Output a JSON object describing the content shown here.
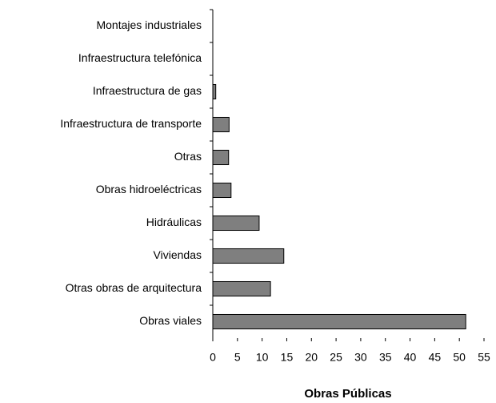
{
  "chart_data": {
    "type": "barh",
    "xlabel": "Obras Públicas",
    "categories": [
      "Montajes industriales",
      "Infraestructura telefónica",
      "Infraestructura de gas",
      "Infraestructura de transporte",
      "Otras",
      "Obras hidroeléctricas",
      "Hidráulicas",
      "Viviendas",
      "Otras obras de arquitectura",
      "Obras viales"
    ],
    "values": [
      0,
      0,
      0.6,
      3.3,
      3.2,
      3.7,
      9.4,
      14.4,
      11.7,
      51.3
    ],
    "color": "#7f7f7f",
    "xlim": [
      0,
      55
    ],
    "xticks": [
      0,
      5,
      10,
      15,
      20,
      25,
      30,
      35,
      40,
      45,
      50,
      55
    ],
    "grid": false
  }
}
